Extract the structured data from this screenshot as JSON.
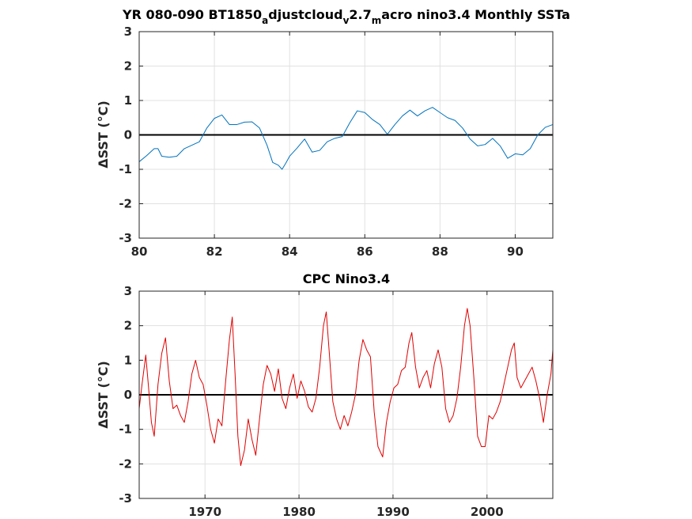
{
  "chart_data": [
    {
      "type": "line",
      "title": "YR 080-090 BT1850",
      "title_parts": [
        {
          "text": "YR 080-090 BT1850",
          "sub": false
        },
        {
          "text": "a",
          "sub": true
        },
        {
          "text": "djustcloud",
          "sub": false
        },
        {
          "text": "v",
          "sub": true
        },
        {
          "text": "2.7",
          "sub": false
        },
        {
          "text": "m",
          "sub": true
        },
        {
          "text": "acro nino3.4 Monthly SSTa",
          "sub": false
        }
      ],
      "xlabel": "",
      "ylabel": "ΔSST (°C)",
      "xlim": [
        80,
        91
      ],
      "ylim": [
        -3,
        3
      ],
      "xticks": [
        80,
        82,
        84,
        86,
        88,
        90
      ],
      "xtick_labels": [
        "80",
        "82",
        "84",
        "86",
        "88",
        "90"
      ],
      "yticks": [
        -3,
        -2,
        -1,
        0,
        1,
        2,
        3
      ],
      "ytick_labels": [
        "-3",
        "-2",
        "-1",
        "0",
        "1",
        "2",
        "3"
      ],
      "grid": true,
      "reference_line": 0,
      "series": [
        {
          "color": "#0072bd",
          "x": [
            80.0,
            80.2,
            80.4,
            80.5,
            80.6,
            80.8,
            81.0,
            81.2,
            81.4,
            81.6,
            81.8,
            82.0,
            82.2,
            82.4,
            82.6,
            82.8,
            83.0,
            83.2,
            83.4,
            83.55,
            83.7,
            83.8,
            83.9,
            84.0,
            84.2,
            84.4,
            84.6,
            84.8,
            85.0,
            85.2,
            85.4,
            85.6,
            85.8,
            86.0,
            86.2,
            86.4,
            86.6,
            86.8,
            87.0,
            87.2,
            87.4,
            87.6,
            87.8,
            88.0,
            88.2,
            88.4,
            88.6,
            88.8,
            89.0,
            89.2,
            89.4,
            89.6,
            89.8,
            90.0,
            90.2,
            90.4,
            90.6,
            90.8,
            91.0
          ],
          "y": [
            -0.78,
            -0.6,
            -0.4,
            -0.4,
            -0.62,
            -0.65,
            -0.62,
            -0.4,
            -0.3,
            -0.2,
            0.2,
            0.48,
            0.58,
            0.3,
            0.3,
            0.37,
            0.38,
            0.2,
            -0.3,
            -0.8,
            -0.88,
            -1.0,
            -0.82,
            -0.62,
            -0.38,
            -0.12,
            -0.5,
            -0.45,
            -0.2,
            -0.1,
            -0.05,
            0.35,
            0.7,
            0.65,
            0.45,
            0.3,
            0.02,
            0.3,
            0.55,
            0.72,
            0.55,
            0.7,
            0.8,
            0.65,
            0.5,
            0.42,
            0.2,
            -0.12,
            -0.32,
            -0.28,
            -0.1,
            -0.32,
            -0.68,
            -0.55,
            -0.58,
            -0.4,
            0.0,
            0.22,
            0.3
          ]
        }
      ]
    },
    {
      "type": "line",
      "title": "CPC Nino3.4",
      "title_parts": [
        {
          "text": "CPC Nino3.4",
          "sub": false
        }
      ],
      "xlabel": "",
      "ylabel": "ΔSST (°C)",
      "xlim": [
        1963,
        2007
      ],
      "ylim": [
        -3,
        3
      ],
      "xticks": [
        1970,
        1980,
        1990,
        2000
      ],
      "xtick_labels": [
        "1970",
        "1980",
        "1990",
        "2000"
      ],
      "yticks": [
        -3,
        -2,
        -1,
        0,
        1,
        2,
        3
      ],
      "ytick_labels": [
        "-3",
        "-2",
        "-1",
        "0",
        "1",
        "2",
        "3"
      ],
      "grid": true,
      "reference_line": 0,
      "series": [
        {
          "color": "#e00000",
          "x": [
            1963.0,
            1963.3,
            1963.7,
            1964.0,
            1964.3,
            1964.6,
            1965.0,
            1965.4,
            1965.8,
            1966.2,
            1966.6,
            1967.0,
            1967.4,
            1967.8,
            1968.2,
            1968.6,
            1969.0,
            1969.4,
            1969.8,
            1970.2,
            1970.6,
            1971.0,
            1971.4,
            1971.8,
            1972.2,
            1972.6,
            1972.9,
            1973.2,
            1973.5,
            1973.8,
            1974.2,
            1974.6,
            1975.0,
            1975.4,
            1975.8,
            1976.2,
            1976.6,
            1977.0,
            1977.4,
            1977.8,
            1978.2,
            1978.6,
            1979.0,
            1979.4,
            1979.8,
            1980.2,
            1980.6,
            1981.0,
            1981.4,
            1981.8,
            1982.2,
            1982.6,
            1982.9,
            1983.2,
            1983.6,
            1984.0,
            1984.4,
            1984.8,
            1985.2,
            1985.6,
            1986.0,
            1986.4,
            1986.8,
            1987.2,
            1987.6,
            1988.0,
            1988.4,
            1988.9,
            1989.3,
            1989.7,
            1990.1,
            1990.5,
            1990.9,
            1991.3,
            1991.7,
            1992.0,
            1992.4,
            1992.8,
            1993.2,
            1993.6,
            1994.0,
            1994.4,
            1994.8,
            1995.2,
            1995.6,
            1996.0,
            1996.4,
            1996.8,
            1997.2,
            1997.6,
            1997.9,
            1998.2,
            1998.6,
            1999.0,
            1999.4,
            1999.8,
            2000.2,
            2000.6,
            2001.0,
            2001.4,
            2001.8,
            2002.2,
            2002.6,
            2002.9,
            2003.2,
            2003.6,
            2004.0,
            2004.4,
            2004.8,
            2005.2,
            2005.6,
            2006.0,
            2006.4,
            2006.8,
            2007.0
          ],
          "y": [
            -0.4,
            0.3,
            1.15,
            0.2,
            -0.8,
            -1.2,
            0.3,
            1.2,
            1.65,
            0.4,
            -0.4,
            -0.3,
            -0.6,
            -0.8,
            -0.2,
            0.6,
            1.0,
            0.5,
            0.3,
            -0.3,
            -1.0,
            -1.4,
            -0.7,
            -0.9,
            0.4,
            1.6,
            2.25,
            0.6,
            -1.2,
            -2.05,
            -1.6,
            -0.7,
            -1.3,
            -1.75,
            -0.7,
            0.3,
            0.85,
            0.6,
            0.1,
            0.75,
            -0.1,
            -0.4,
            0.2,
            0.6,
            -0.1,
            0.4,
            0.1,
            -0.35,
            -0.5,
            -0.1,
            0.8,
            2.0,
            2.4,
            1.3,
            -0.2,
            -0.7,
            -1.0,
            -0.6,
            -0.9,
            -0.5,
            0.0,
            1.0,
            1.6,
            1.3,
            1.1,
            -0.5,
            -1.5,
            -1.8,
            -0.8,
            -0.2,
            0.2,
            0.3,
            0.7,
            0.8,
            1.5,
            1.8,
            0.8,
            0.2,
            0.5,
            0.7,
            0.2,
            0.9,
            1.3,
            0.8,
            -0.4,
            -0.8,
            -0.6,
            -0.1,
            0.8,
            2.0,
            2.5,
            2.0,
            0.5,
            -1.2,
            -1.5,
            -1.5,
            -0.6,
            -0.7,
            -0.5,
            -0.2,
            0.3,
            0.8,
            1.3,
            1.5,
            0.5,
            0.2,
            0.4,
            0.6,
            0.8,
            0.4,
            -0.1,
            -0.8,
            0.0,
            0.6,
            1.3
          ]
        }
      ]
    }
  ]
}
